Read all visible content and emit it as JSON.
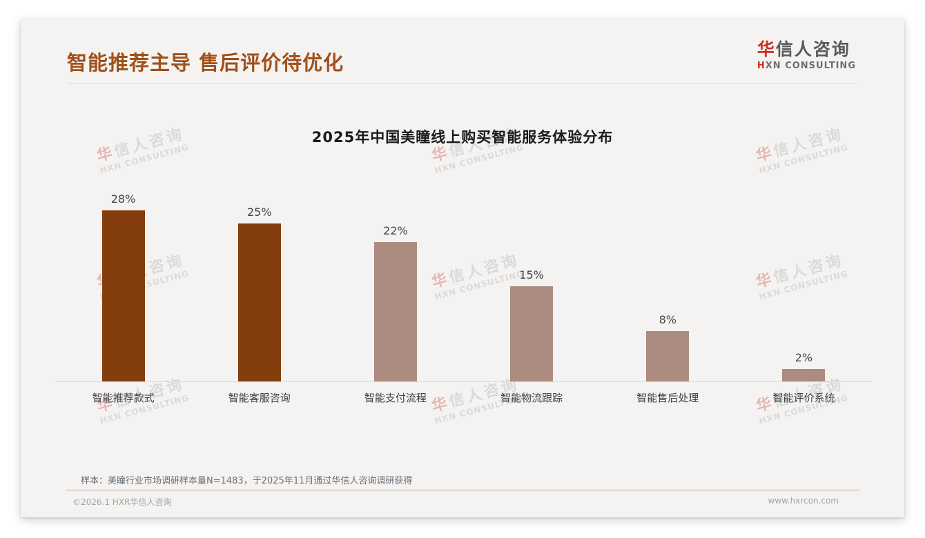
{
  "header": {
    "title": "智能推荐主导 售后评价待优化",
    "logo": {
      "main_red": "华",
      "main_rest": "信人咨询",
      "sub_red": "H",
      "sub_rest": "XN CONSULTING"
    }
  },
  "watermark": {
    "line1_red": "华",
    "line1_rest": "信人咨询",
    "line2": "HXN CONSULTING"
  },
  "chart_data": {
    "type": "bar",
    "title": "2025年中国美瞳线上购买智能服务体验分布",
    "categories": [
      "智能推荐款式",
      "智能客服咨询",
      "智能支付流程",
      "智能物流跟踪",
      "智能售后处理",
      "智能评价系统"
    ],
    "values": [
      28,
      25,
      22,
      15,
      8,
      2
    ],
    "value_labels": [
      "28%",
      "25%",
      "22%",
      "15%",
      "8%",
      "2%"
    ],
    "bar_colors": [
      "#843e0d",
      "#843e0d",
      "#ac8c80",
      "#ac8c80",
      "#ac8c80",
      "#ac8c80"
    ],
    "xlabel": "",
    "ylabel": "",
    "ylim": [
      0,
      30
    ],
    "grid": false,
    "legend": false
  },
  "footer": {
    "footnote": "样本：美瞳行业市场调研样本量N=1483，于2025年11月通过华信人咨询调研获得",
    "copyright": "©2026.1 HXR华信人咨询",
    "website": "www.hxrcon.com"
  },
  "colors": {
    "title_accent": "#a0501a",
    "bar_dark": "#843e0d",
    "bar_light": "#ac8c80",
    "logo_red": "#cf2e21",
    "logo_gray": "#58595b",
    "axis_line": "#d9d9d9",
    "footer_divider": "#b5a092",
    "card_background": "#f4f3f1"
  }
}
